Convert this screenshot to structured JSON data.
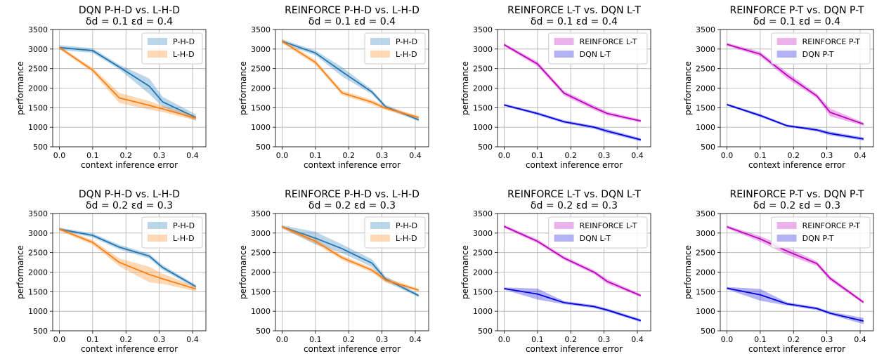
{
  "chart_data": [
    {
      "type": "line",
      "title": "DQN P-H-D vs. L-H-D",
      "subtitle": "δd = 0.1   εd = 0.4",
      "xlabel": "context inference error",
      "ylabel": "performance",
      "xlim": [
        -0.02,
        0.44
      ],
      "ylim": [
        500,
        3500
      ],
      "xticks": [
        "0.0",
        "0.1",
        "0.2",
        "0.3",
        "0.4"
      ],
      "yticks": [
        "500",
        "1000",
        "1500",
        "2000",
        "2500",
        "3000",
        "3500"
      ],
      "grid": true,
      "legend": "top-right",
      "series": [
        {
          "name": "P-H-D",
          "color": "#1f77b4",
          "x": [
            0.0,
            0.1,
            0.18,
            0.27,
            0.31,
            0.41
          ],
          "y": [
            3040,
            2960,
            2540,
            2050,
            1650,
            1250
          ],
          "band": [
            60,
            60,
            60,
            200,
            130,
            80
          ]
        },
        {
          "name": "L-H-D",
          "color": "#ff7f0e",
          "x": [
            0.0,
            0.1,
            0.18,
            0.27,
            0.31,
            0.41
          ],
          "y": [
            3040,
            2460,
            1750,
            1560,
            1470,
            1230
          ],
          "band": [
            40,
            60,
            130,
            110,
            80,
            60
          ]
        }
      ]
    },
    {
      "type": "line",
      "title": "REINFORCE P-H-D vs. L-H-D",
      "subtitle": "δd = 0.1   εd = 0.4",
      "xlabel": "context inference error",
      "ylabel": "performance",
      "xlim": [
        -0.02,
        0.44
      ],
      "ylim": [
        500,
        3500
      ],
      "xticks": [
        "0.0",
        "0.1",
        "0.2",
        "0.3",
        "0.4"
      ],
      "yticks": [
        "500",
        "1000",
        "1500",
        "2000",
        "2500",
        "3000",
        "3500"
      ],
      "grid": true,
      "legend": "top-right",
      "series": [
        {
          "name": "P-H-D",
          "color": "#1f77b4",
          "x": [
            0.0,
            0.1,
            0.18,
            0.27,
            0.31,
            0.41
          ],
          "y": [
            3200,
            2900,
            2420,
            1900,
            1530,
            1190
          ],
          "band": [
            50,
            60,
            120,
            60,
            50,
            40
          ]
        },
        {
          "name": "L-H-D",
          "color": "#ff7f0e",
          "x": [
            0.0,
            0.1,
            0.18,
            0.27,
            0.31,
            0.41
          ],
          "y": [
            3200,
            2660,
            1880,
            1640,
            1490,
            1250
          ],
          "band": [
            50,
            60,
            60,
            60,
            50,
            40
          ]
        }
      ]
    },
    {
      "type": "line",
      "title": "REINFORCE L-T vs. DQN L-T",
      "subtitle": "δd = 0.1   εd = 0.4",
      "xlabel": "context inference error",
      "ylabel": "performance",
      "xlim": [
        -0.02,
        0.44
      ],
      "ylim": [
        500,
        3500
      ],
      "xticks": [
        "0.0",
        "0.1",
        "0.2",
        "0.3",
        "0.4"
      ],
      "yticks": [
        "500",
        "1000",
        "1500",
        "2000",
        "2500",
        "3000",
        "3500"
      ],
      "grid": true,
      "legend": "top-right",
      "series": [
        {
          "name": "REINFORCE L-T",
          "color": "#bf00bf",
          "x": [
            0.0,
            0.1,
            0.18,
            0.27,
            0.31,
            0.41
          ],
          "y": [
            3110,
            2620,
            1870,
            1500,
            1350,
            1160
          ],
          "band": [
            40,
            60,
            60,
            60,
            50,
            40
          ]
        },
        {
          "name": "DQN L-T",
          "color": "#0000dd",
          "x": [
            0.0,
            0.1,
            0.18,
            0.27,
            0.31,
            0.41
          ],
          "y": [
            1570,
            1350,
            1140,
            1000,
            900,
            680
          ],
          "band": [
            30,
            40,
            40,
            40,
            50,
            40
          ]
        }
      ]
    },
    {
      "type": "line",
      "title": "REINFORCE P-T vs. DQN P-T",
      "subtitle": "δd = 0.1   εd = 0.4",
      "xlabel": "context inference error",
      "ylabel": "performance",
      "xlim": [
        -0.02,
        0.44
      ],
      "ylim": [
        500,
        3500
      ],
      "xticks": [
        "0.0",
        "0.1",
        "0.2",
        "0.3",
        "0.4"
      ],
      "yticks": [
        "500",
        "1000",
        "1500",
        "2000",
        "2500",
        "3000",
        "3500"
      ],
      "grid": true,
      "legend": "top-right",
      "series": [
        {
          "name": "REINFORCE P-T",
          "color": "#bf00bf",
          "x": [
            0.0,
            0.1,
            0.18,
            0.27,
            0.31,
            0.41
          ],
          "y": [
            3120,
            2870,
            2330,
            1800,
            1380,
            1080
          ],
          "band": [
            40,
            60,
            80,
            60,
            100,
            40
          ]
        },
        {
          "name": "DQN P-T",
          "color": "#0000dd",
          "x": [
            0.0,
            0.1,
            0.18,
            0.27,
            0.31,
            0.41
          ],
          "y": [
            1580,
            1300,
            1040,
            930,
            840,
            700
          ],
          "band": [
            30,
            40,
            30,
            40,
            50,
            40
          ]
        }
      ]
    },
    {
      "type": "line",
      "title": "DQN P-H-D vs. L-H-D",
      "subtitle": "δd = 0.2   εd = 0.3",
      "xlabel": "context inference error",
      "ylabel": "performance",
      "xlim": [
        -0.02,
        0.44
      ],
      "ylim": [
        500,
        3500
      ],
      "xticks": [
        "0.0",
        "0.1",
        "0.2",
        "0.3",
        "0.4"
      ],
      "yticks": [
        "500",
        "1000",
        "1500",
        "2000",
        "2500",
        "3000",
        "3500"
      ],
      "grid": true,
      "legend": "top-right",
      "series": [
        {
          "name": "P-H-D",
          "color": "#1f77b4",
          "x": [
            0.0,
            0.1,
            0.18,
            0.27,
            0.31,
            0.41
          ],
          "y": [
            3100,
            2940,
            2640,
            2410,
            2120,
            1630
          ],
          "band": [
            40,
            50,
            60,
            60,
            60,
            50
          ]
        },
        {
          "name": "L-H-D",
          "color": "#ff7f0e",
          "x": [
            0.0,
            0.1,
            0.18,
            0.27,
            0.31,
            0.41
          ],
          "y": [
            3100,
            2760,
            2250,
            1940,
            1830,
            1570
          ],
          "band": [
            40,
            60,
            100,
            200,
            130,
            60
          ]
        }
      ]
    },
    {
      "type": "line",
      "title": "REINFORCE P-H-D vs. L-H-D",
      "subtitle": "δd = 0.2   εd = 0.3",
      "xlabel": "context inference error",
      "ylabel": "performance",
      "xlim": [
        -0.02,
        0.44
      ],
      "ylim": [
        500,
        3500
      ],
      "xticks": [
        "0.0",
        "0.1",
        "0.2",
        "0.3",
        "0.4"
      ],
      "yticks": [
        "500",
        "1000",
        "1500",
        "2000",
        "2500",
        "3000",
        "3500"
      ],
      "grid": true,
      "legend": "top-right",
      "series": [
        {
          "name": "P-H-D",
          "color": "#1f77b4",
          "x": [
            0.0,
            0.1,
            0.18,
            0.27,
            0.31,
            0.41
          ],
          "y": [
            3160,
            2870,
            2600,
            2230,
            1830,
            1400
          ],
          "band": [
            40,
            160,
            110,
            100,
            70,
            40
          ]
        },
        {
          "name": "L-H-D",
          "color": "#ff7f0e",
          "x": [
            0.0,
            0.1,
            0.18,
            0.27,
            0.31,
            0.41
          ],
          "y": [
            3160,
            2790,
            2370,
            2050,
            1800,
            1540
          ],
          "band": [
            40,
            60,
            60,
            60,
            60,
            40
          ]
        }
      ]
    },
    {
      "type": "line",
      "title": "REINFORCE L-T vs. DQN L-T",
      "subtitle": "δd = 0.2   εd = 0.3",
      "xlabel": "context inference error",
      "ylabel": "performance",
      "xlim": [
        -0.02,
        0.44
      ],
      "ylim": [
        500,
        3500
      ],
      "xticks": [
        "0.0",
        "0.1",
        "0.2",
        "0.3",
        "0.4"
      ],
      "yticks": [
        "500",
        "1000",
        "1500",
        "2000",
        "2500",
        "3000",
        "3500"
      ],
      "grid": true,
      "legend": "top-right",
      "series": [
        {
          "name": "REINFORCE L-T",
          "color": "#bf00bf",
          "x": [
            0.0,
            0.1,
            0.18,
            0.27,
            0.31,
            0.41
          ],
          "y": [
            3170,
            2790,
            2360,
            2000,
            1760,
            1400
          ],
          "band": [
            40,
            50,
            50,
            50,
            60,
            40
          ]
        },
        {
          "name": "DQN L-T",
          "color": "#0000dd",
          "x": [
            0.0,
            0.1,
            0.18,
            0.27,
            0.31,
            0.41
          ],
          "y": [
            1580,
            1440,
            1220,
            1120,
            1030,
            760
          ],
          "band": [
            30,
            140,
            40,
            40,
            40,
            40
          ]
        }
      ]
    },
    {
      "type": "line",
      "title": "REINFORCE P-T vs. DQN P-T",
      "subtitle": "δd = 0.2   εd = 0.3",
      "xlabel": "context inference error",
      "ylabel": "performance",
      "xlim": [
        -0.02,
        0.44
      ],
      "ylim": [
        500,
        3500
      ],
      "xticks": [
        "0.0",
        "0.1",
        "0.2",
        "0.3",
        "0.4"
      ],
      "yticks": [
        "500",
        "1000",
        "1500",
        "2000",
        "2500",
        "3000",
        "3500"
      ],
      "grid": true,
      "legend": "top-right",
      "series": [
        {
          "name": "REINFORCE P-T",
          "color": "#bf00bf",
          "x": [
            0.0,
            0.1,
            0.18,
            0.27,
            0.31,
            0.41
          ],
          "y": [
            3160,
            2850,
            2540,
            2220,
            1840,
            1230
          ],
          "band": [
            40,
            70,
            90,
            60,
            60,
            40
          ]
        },
        {
          "name": "DQN P-T",
          "color": "#0000dd",
          "x": [
            0.0,
            0.1,
            0.18,
            0.27,
            0.31,
            0.41
          ],
          "y": [
            1590,
            1420,
            1190,
            1070,
            950,
            750
          ],
          "band": [
            30,
            150,
            40,
            40,
            40,
            80
          ]
        }
      ]
    }
  ]
}
